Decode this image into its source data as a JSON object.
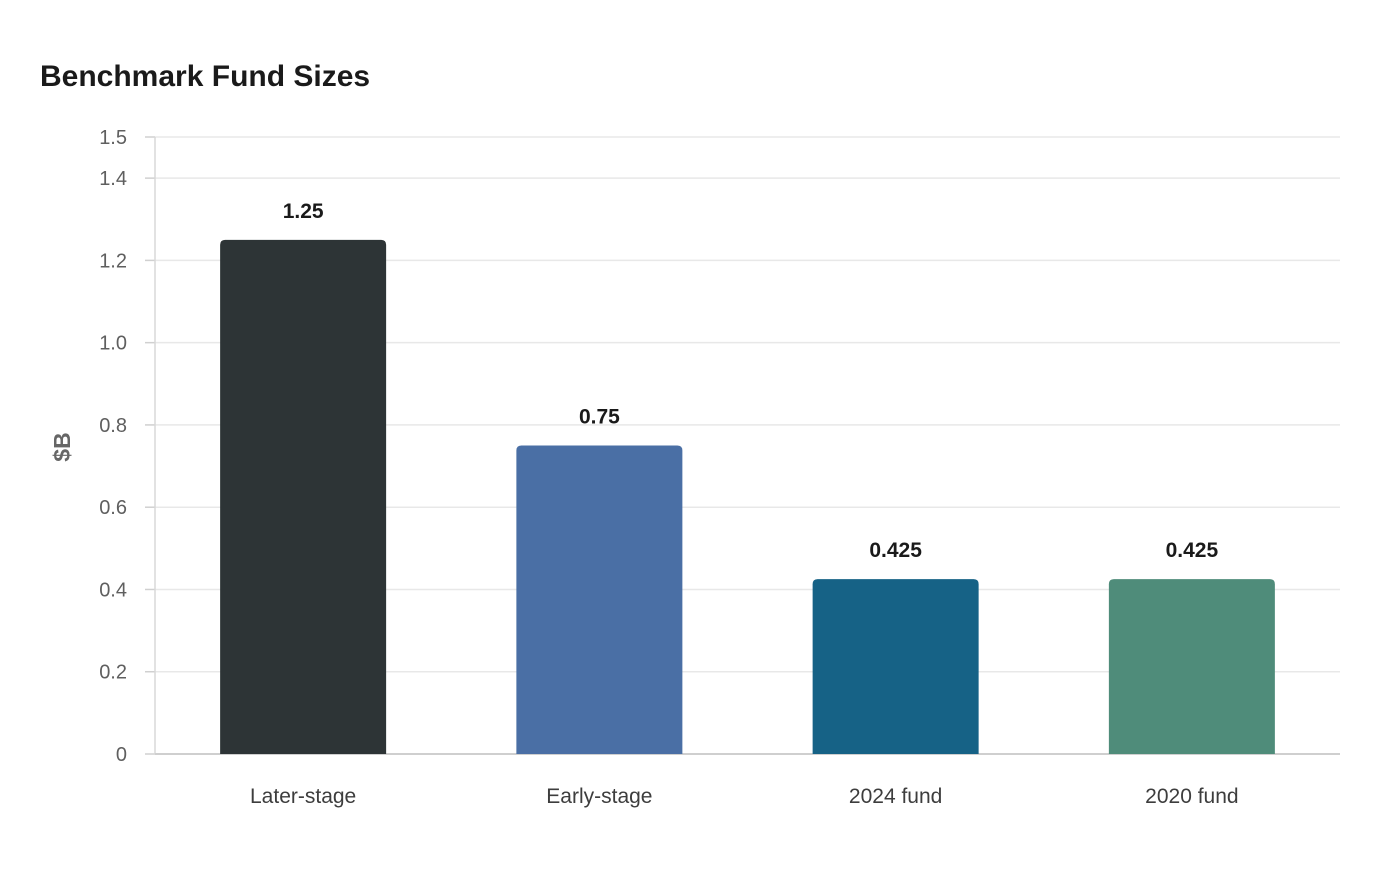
{
  "chart_data": {
    "type": "bar",
    "title": "Benchmark Fund Sizes",
    "xlabel": "",
    "ylabel": "$B",
    "categories": [
      "Later-stage",
      "Early-stage",
      "2024 fund",
      "2020 fund"
    ],
    "values": [
      1.25,
      0.75,
      0.425,
      0.425
    ],
    "value_labels": [
      "1.25",
      "0.75",
      "0.425",
      "0.425"
    ],
    "colors": [
      "#2d3436",
      "#4a6fa5",
      "#166286",
      "#4f8c7a"
    ],
    "ylim": [
      0,
      1.5
    ],
    "yticks": [
      0,
      0.2,
      0.4,
      0.6,
      0.8,
      1.0,
      1.2,
      1.4,
      1.5
    ],
    "ytick_labels": [
      "0",
      "0.2",
      "0.4",
      "0.6",
      "0.8",
      "1.0",
      "1.2",
      "1.4",
      "1.5"
    ],
    "grid": true,
    "legend": "none"
  }
}
